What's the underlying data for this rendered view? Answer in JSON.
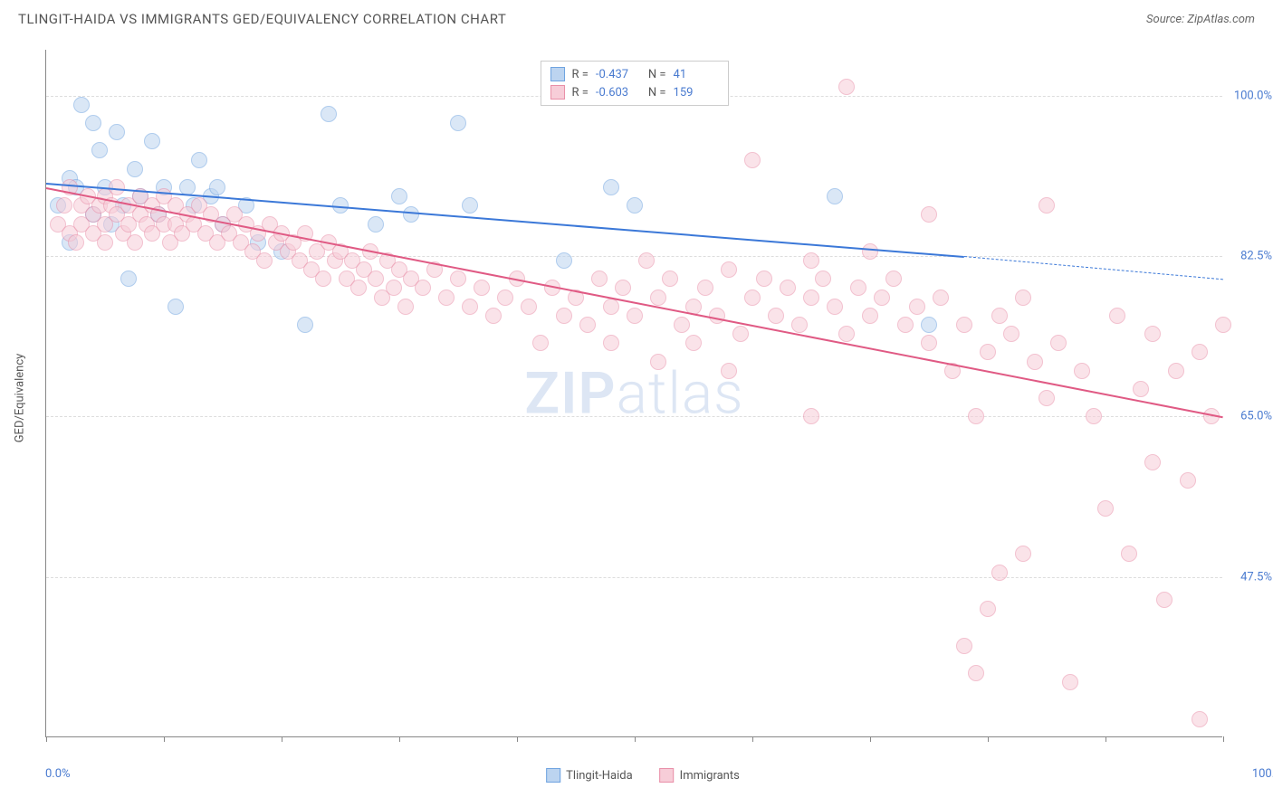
{
  "header": {
    "title": "TLINGIT-HAIDA VS IMMIGRANTS GED/EQUIVALENCY CORRELATION CHART",
    "source": "Source: ZipAtlas.com"
  },
  "chart": {
    "type": "scatter",
    "ylabel": "GED/Equivalency",
    "xlim": [
      0,
      100
    ],
    "ylim": [
      30,
      105
    ],
    "x_tick_positions": [
      0,
      10,
      20,
      30,
      40,
      50,
      60,
      70,
      80,
      90,
      100
    ],
    "y_grid_values": [
      47.5,
      65.0,
      82.5,
      100.0
    ],
    "y_grid_labels": [
      "47.5%",
      "65.0%",
      "82.5%",
      "100.0%"
    ],
    "x_min_label": "0.0%",
    "x_max_label": "100.0%",
    "background_color": "#ffffff",
    "grid_color": "#dddddd",
    "axis_color": "#888888",
    "tick_color": "#4a7bd0",
    "watermark_zip": "ZIP",
    "watermark_atlas": "atlas",
    "series": [
      {
        "name": "Tlingit-Haida",
        "fill": "#bcd4f0",
        "stroke": "#6fa3e0",
        "trend_color": "#3b78d8",
        "R": "-0.437",
        "N": "41",
        "trend_start": [
          0,
          90.5
        ],
        "trend_end": [
          78,
          82.5
        ],
        "trend_dash_end": [
          100,
          80.0
        ],
        "points": [
          [
            1,
            88
          ],
          [
            2,
            91
          ],
          [
            2,
            84
          ],
          [
            2.5,
            90
          ],
          [
            3,
            99
          ],
          [
            4,
            97
          ],
          [
            4,
            87
          ],
          [
            4.5,
            94
          ],
          [
            5,
            90
          ],
          [
            5.5,
            86
          ],
          [
            6,
            96
          ],
          [
            6.5,
            88
          ],
          [
            7,
            80
          ],
          [
            7.5,
            92
          ],
          [
            8,
            89
          ],
          [
            9,
            95
          ],
          [
            9.5,
            87
          ],
          [
            10,
            90
          ],
          [
            11,
            77
          ],
          [
            12,
            90
          ],
          [
            12.5,
            88
          ],
          [
            13,
            93
          ],
          [
            14,
            89
          ],
          [
            14.5,
            90
          ],
          [
            15,
            86
          ],
          [
            17,
            88
          ],
          [
            18,
            84
          ],
          [
            20,
            83
          ],
          [
            22,
            75
          ],
          [
            24,
            98
          ],
          [
            25,
            88
          ],
          [
            28,
            86
          ],
          [
            30,
            89
          ],
          [
            31,
            87
          ],
          [
            35,
            97
          ],
          [
            36,
            88
          ],
          [
            44,
            82
          ],
          [
            48,
            90
          ],
          [
            50,
            88
          ],
          [
            67,
            89
          ],
          [
            75,
            75
          ]
        ]
      },
      {
        "name": "Immigrants",
        "fill": "#f7cdd8",
        "stroke": "#e98fa8",
        "trend_color": "#e05a84",
        "R": "-0.603",
        "N": "159",
        "trend_start": [
          0,
          90.0
        ],
        "trend_end": [
          100,
          65.0
        ],
        "trend_dash_end": null,
        "points": [
          [
            1,
            86
          ],
          [
            1.5,
            88
          ],
          [
            2,
            85
          ],
          [
            2,
            90
          ],
          [
            2.5,
            84
          ],
          [
            3,
            88
          ],
          [
            3,
            86
          ],
          [
            3.5,
            89
          ],
          [
            4,
            87
          ],
          [
            4,
            85
          ],
          [
            4.5,
            88
          ],
          [
            5,
            89
          ],
          [
            5,
            86
          ],
          [
            5,
            84
          ],
          [
            5.5,
            88
          ],
          [
            6,
            90
          ],
          [
            6,
            87
          ],
          [
            6.5,
            85
          ],
          [
            7,
            88
          ],
          [
            7,
            86
          ],
          [
            7.5,
            84
          ],
          [
            8,
            89
          ],
          [
            8,
            87
          ],
          [
            8.5,
            86
          ],
          [
            9,
            88
          ],
          [
            9,
            85
          ],
          [
            9.5,
            87
          ],
          [
            10,
            89
          ],
          [
            10,
            86
          ],
          [
            10.5,
            84
          ],
          [
            11,
            88
          ],
          [
            11,
            86
          ],
          [
            11.5,
            85
          ],
          [
            12,
            87
          ],
          [
            12.5,
            86
          ],
          [
            13,
            88
          ],
          [
            13.5,
            85
          ],
          [
            14,
            87
          ],
          [
            14.5,
            84
          ],
          [
            15,
            86
          ],
          [
            15.5,
            85
          ],
          [
            16,
            87
          ],
          [
            16.5,
            84
          ],
          [
            17,
            86
          ],
          [
            17.5,
            83
          ],
          [
            18,
            85
          ],
          [
            18.5,
            82
          ],
          [
            19,
            86
          ],
          [
            19.5,
            84
          ],
          [
            20,
            85
          ],
          [
            20.5,
            83
          ],
          [
            21,
            84
          ],
          [
            21.5,
            82
          ],
          [
            22,
            85
          ],
          [
            22.5,
            81
          ],
          [
            23,
            83
          ],
          [
            23.5,
            80
          ],
          [
            24,
            84
          ],
          [
            24.5,
            82
          ],
          [
            25,
            83
          ],
          [
            25.5,
            80
          ],
          [
            26,
            82
          ],
          [
            26.5,
            79
          ],
          [
            27,
            81
          ],
          [
            27.5,
            83
          ],
          [
            28,
            80
          ],
          [
            28.5,
            78
          ],
          [
            29,
            82
          ],
          [
            29.5,
            79
          ],
          [
            30,
            81
          ],
          [
            30.5,
            77
          ],
          [
            31,
            80
          ],
          [
            32,
            79
          ],
          [
            33,
            81
          ],
          [
            34,
            78
          ],
          [
            35,
            80
          ],
          [
            36,
            77
          ],
          [
            37,
            79
          ],
          [
            38,
            76
          ],
          [
            39,
            78
          ],
          [
            40,
            80
          ],
          [
            41,
            77
          ],
          [
            42,
            73
          ],
          [
            43,
            79
          ],
          [
            44,
            76
          ],
          [
            45,
            78
          ],
          [
            46,
            75
          ],
          [
            47,
            80
          ],
          [
            48,
            77
          ],
          [
            49,
            79
          ],
          [
            50,
            76
          ],
          [
            51,
            82
          ],
          [
            52,
            78
          ],
          [
            53,
            80
          ],
          [
            54,
            75
          ],
          [
            55,
            77
          ],
          [
            56,
            79
          ],
          [
            57,
            76
          ],
          [
            58,
            81
          ],
          [
            59,
            74
          ],
          [
            60,
            78
          ],
          [
            60,
            93
          ],
          [
            61,
            80
          ],
          [
            62,
            76
          ],
          [
            63,
            79
          ],
          [
            64,
            75
          ],
          [
            65,
            78
          ],
          [
            65,
            65
          ],
          [
            66,
            80
          ],
          [
            67,
            77
          ],
          [
            68,
            101
          ],
          [
            68,
            74
          ],
          [
            69,
            79
          ],
          [
            70,
            76
          ],
          [
            71,
            78
          ],
          [
            72,
            80
          ],
          [
            73,
            75
          ],
          [
            74,
            77
          ],
          [
            75,
            73
          ],
          [
            75,
            87
          ],
          [
            76,
            78
          ],
          [
            77,
            70
          ],
          [
            78,
            75
          ],
          [
            78,
            40
          ],
          [
            79,
            65
          ],
          [
            79,
            37
          ],
          [
            80,
            72
          ],
          [
            80,
            44
          ],
          [
            81,
            76
          ],
          [
            81,
            48
          ],
          [
            82,
            74
          ],
          [
            83,
            78
          ],
          [
            83,
            50
          ],
          [
            84,
            71
          ],
          [
            85,
            67
          ],
          [
            85,
            88
          ],
          [
            86,
            73
          ],
          [
            87,
            36
          ],
          [
            88,
            70
          ],
          [
            89,
            65
          ],
          [
            90,
            55
          ],
          [
            91,
            76
          ],
          [
            92,
            50
          ],
          [
            93,
            68
          ],
          [
            94,
            60
          ],
          [
            94,
            74
          ],
          [
            95,
            45
          ],
          [
            96,
            70
          ],
          [
            97,
            58
          ],
          [
            98,
            72
          ],
          [
            98,
            32
          ],
          [
            99,
            65
          ],
          [
            100,
            75
          ],
          [
            65,
            82
          ],
          [
            70,
            83
          ],
          [
            55,
            73
          ],
          [
            58,
            70
          ],
          [
            48,
            73
          ],
          [
            52,
            71
          ]
        ]
      }
    ]
  }
}
